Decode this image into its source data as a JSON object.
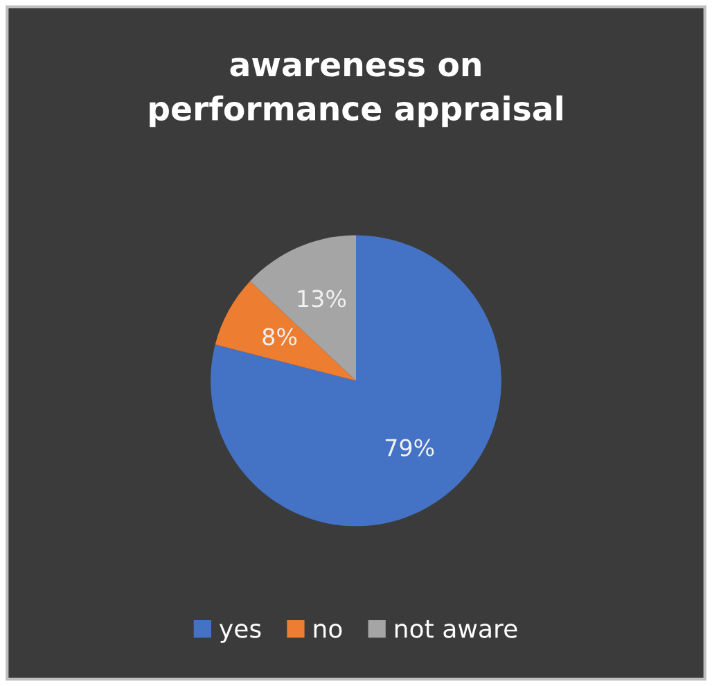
{
  "chart_data": {
    "type": "pie",
    "title": "awareness on\nperformance appraisal",
    "categories": [
      "yes",
      "no",
      "not aware"
    ],
    "values": [
      79,
      8,
      13
    ],
    "colors": [
      "#4472c4",
      "#ed7d31",
      "#a5a5a5"
    ],
    "value_labels": [
      "79%",
      "8%",
      "13%"
    ],
    "legend": "bottom"
  }
}
